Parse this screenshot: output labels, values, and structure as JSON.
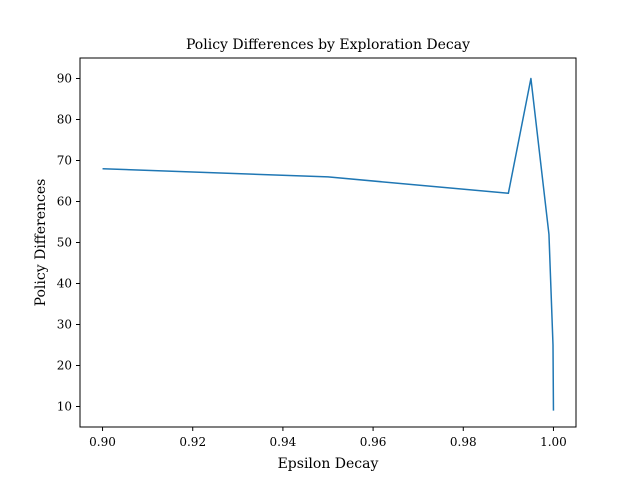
{
  "chart_data": {
    "type": "line",
    "title": "Policy Differences by Exploration Decay",
    "xlabel": "Epsilon Decay",
    "ylabel": "Policy Differences",
    "xlim": [
      0.895,
      1.005
    ],
    "ylim": [
      5,
      95
    ],
    "xticks": [
      0.9,
      0.92,
      0.94,
      0.96,
      0.98,
      1.0
    ],
    "xtick_labels": [
      "0.90",
      "0.92",
      "0.94",
      "0.96",
      "0.98",
      "1.00"
    ],
    "yticks": [
      10,
      20,
      30,
      40,
      50,
      60,
      70,
      80,
      90
    ],
    "ytick_labels": [
      "10",
      "20",
      "30",
      "40",
      "50",
      "60",
      "70",
      "80",
      "90"
    ],
    "grid": false,
    "series": [
      {
        "color": "#1f77b4",
        "x": [
          0.9,
          0.95,
          0.99,
          0.995,
          0.999,
          0.9999,
          1.0
        ],
        "y": [
          68,
          66,
          62,
          90,
          52,
          25,
          9
        ]
      }
    ]
  }
}
